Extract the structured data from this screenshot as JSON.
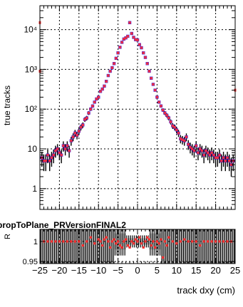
{
  "chart_data": [
    {
      "type": "scatter",
      "ylabel": "true tracks",
      "yscale": "log",
      "ylim": [
        0.3,
        40000
      ],
      "xlim": [
        -25,
        25
      ],
      "grid": true,
      "ytick_labels": [
        "1",
        "10",
        "10²",
        "10³",
        "10⁴"
      ],
      "ytick_values": [
        1,
        10,
        100,
        1000,
        10000
      ],
      "series": [
        {
          "color": "#1a1aff",
          "x": [
            -24.5,
            -24,
            -23.5,
            -23,
            -22.5,
            -22,
            -21.5,
            -21,
            -20.5,
            -20,
            -19.5,
            -19,
            -18.5,
            -18,
            -17.5,
            -17,
            -16.5,
            -16,
            -15.5,
            -15,
            -14.5,
            -14,
            -13.5,
            -13,
            -12.5,
            -12,
            -11.5,
            -11,
            -10.5,
            -10,
            -9.5,
            -9,
            -8.5,
            -8,
            -7.5,
            -7,
            -6.5,
            -6,
            -5.5,
            -5,
            -4.5,
            -4,
            -3.5,
            -3,
            -2.5,
            -2,
            -1.5,
            -1,
            -0.5,
            0,
            0.5,
            1,
            1.5,
            2,
            2.5,
            3,
            3.5,
            4,
            4.5,
            5,
            5.5,
            6,
            6.5,
            7,
            7.5,
            8,
            8.5,
            9,
            9.5,
            10,
            10.5,
            11,
            11.5,
            12,
            12.5,
            13,
            13.5,
            14,
            14.5,
            15,
            15.5,
            16,
            16.5,
            17,
            17.5,
            18,
            18.5,
            19,
            19.5,
            20,
            20.5,
            21,
            21.5,
            22,
            22.5,
            23,
            23.5,
            24,
            24.5
          ],
          "values": [
            6,
            5,
            5,
            7,
            5,
            6,
            7,
            9,
            10,
            8,
            7,
            12,
            10,
            12,
            9,
            16,
            20,
            25,
            22,
            28,
            35,
            40,
            55,
            60,
            80,
            100,
            120,
            150,
            180,
            200,
            280,
            320,
            380,
            500,
            700,
            900,
            1100,
            1400,
            1900,
            2600,
            3600,
            4800,
            5800,
            6200,
            6800,
            15000,
            8000,
            6400,
            5600,
            5500,
            4200,
            3500,
            2600,
            2000,
            1400,
            900,
            600,
            420,
            300,
            200,
            150,
            120,
            95,
            80,
            70,
            60,
            48,
            38,
            35,
            30,
            25,
            18,
            17,
            16,
            20,
            13,
            11,
            10,
            9,
            12,
            8,
            10,
            9,
            7,
            9,
            8,
            7,
            8,
            7,
            6,
            6,
            7,
            5,
            6,
            5,
            6,
            5,
            4,
            5
          ]
        },
        {
          "color": "#ff3030",
          "x": [
            -24.5,
            -24,
            -23.5,
            -23,
            -22.5,
            -22,
            -21.5,
            -21,
            -20.5,
            -20,
            -19.5,
            -19,
            -18.5,
            -18,
            -17.5,
            -17,
            -16.5,
            -16,
            -15.5,
            -15,
            -14.5,
            -14,
            -13.5,
            -13,
            -12.5,
            -12,
            -11.5,
            -11,
            -10.5,
            -10,
            -9.5,
            -9,
            -8.5,
            -8,
            -7.5,
            -7,
            -6.5,
            -6,
            -5.5,
            -5,
            -4.5,
            -4,
            -3.5,
            -3,
            -2.5,
            -2,
            -1.5,
            -1,
            -0.5,
            0,
            0.5,
            1,
            1.5,
            2,
            2.5,
            3,
            3.5,
            4,
            4.5,
            5,
            5.5,
            6,
            6.5,
            7,
            7.5,
            8,
            8.5,
            9,
            9.5,
            10,
            10.5,
            11,
            11.5,
            12,
            12.5,
            13,
            13.5,
            14,
            14.5,
            15,
            15.5,
            16,
            16.5,
            17,
            17.5,
            18,
            18.5,
            19,
            19.5,
            20,
            20.5,
            21,
            21.5,
            22,
            22.5,
            23,
            23.5,
            24,
            24.5
          ],
          "values": [
            6,
            5,
            5,
            7,
            5,
            6,
            7,
            9,
            10,
            8,
            7,
            12,
            10,
            12,
            9,
            16,
            20,
            25,
            22,
            28,
            35,
            40,
            55,
            60,
            80,
            100,
            120,
            150,
            180,
            200,
            280,
            320,
            380,
            500,
            700,
            900,
            1100,
            1400,
            1900,
            2600,
            3600,
            4800,
            5800,
            6200,
            6800,
            15000,
            8000,
            6400,
            5600,
            5500,
            4200,
            3500,
            2600,
            2000,
            1400,
            900,
            600,
            420,
            300,
            200,
            150,
            120,
            95,
            80,
            70,
            60,
            48,
            38,
            35,
            30,
            25,
            18,
            17,
            16,
            20,
            13,
            11,
            10,
            9,
            12,
            8,
            10,
            9,
            7,
            9,
            8,
            7,
            8,
            7,
            6,
            6,
            7,
            5,
            6,
            5,
            6,
            5,
            4,
            5
          ]
        }
      ],
      "edge_markers": [
        {
          "x": -25,
          "y": 15000,
          "color": "#ff3030"
        },
        {
          "x": -25,
          "y": 900,
          "color": "#ff3030"
        },
        {
          "x": 25,
          "y": 300,
          "color": "#ff3030"
        }
      ]
    },
    {
      "type": "scatter",
      "title": "propToPlane_PRVersionFINAL2",
      "ylabel": "R",
      "xlabel": "track dxy (cm)",
      "xlim": [
        -25,
        25
      ],
      "ylim": [
        0.945,
        1.03
      ],
      "grid": true,
      "xtick_labels": [
        "−25",
        "−20",
        "−15",
        "−10",
        "−5",
        "0",
        "5",
        "10",
        "15",
        "20",
        "25"
      ],
      "xtick_values": [
        -25,
        -20,
        -15,
        -10,
        -5,
        0,
        5,
        10,
        15,
        20,
        25
      ],
      "ytick_labels": [
        "0.95",
        "1"
      ],
      "ytick_values": [
        0.95,
        1.0
      ],
      "series": [
        {
          "color": "#ff3030",
          "x": [
            -24,
            -23,
            -22,
            -21,
            -20,
            -19,
            -18,
            -17,
            -16,
            -15,
            -14,
            -13,
            -12,
            -11,
            -10,
            -9.5,
            -9,
            -8.5,
            -8,
            -7.5,
            -7,
            -6.5,
            -6,
            -5.5,
            -5,
            -4.5,
            -4,
            -3.5,
            -3,
            -2.5,
            -2,
            -1.5,
            -1,
            -0.5,
            0,
            0.5,
            1,
            1.5,
            2,
            2.5,
            3,
            3.5,
            4,
            4.5,
            5,
            5.5,
            6,
            6.5,
            7,
            7.5,
            8,
            9,
            10,
            11,
            12,
            13,
            14,
            15,
            16,
            17,
            18,
            19,
            20,
            21,
            22,
            23,
            24
          ],
          "values": [
            1.0,
            1.0,
            1.0,
            1.0,
            1.0,
            1.0,
            1.0,
            1.0,
            1.0,
            1.0,
            0.99,
            1.0,
            1.01,
            0.995,
            1.005,
            1.0,
            0.99,
            1.005,
            1.01,
            1.0,
            0.985,
            1.0,
            1.005,
            0.995,
            1.0,
            0.99,
            0.985,
            1.0,
            1.005,
            0.99,
            0.985,
            1.0,
            0.995,
            1.005,
            1.0,
            1.01,
            0.995,
            0.985,
            1.0,
            1.01,
            1.005,
            0.99,
            1.0,
            0.985,
            1.0,
            0.995,
            1.005,
            0.96,
            1.0,
            0.99,
            1.01,
            1.0,
            0.995,
            1.0,
            1.005,
            1.0,
            1.0,
            1.0,
            0.99,
            1.0,
            1.0,
            1.0,
            1.0,
            1.0,
            1.0,
            1.0,
            1.0
          ]
        }
      ]
    }
  ]
}
